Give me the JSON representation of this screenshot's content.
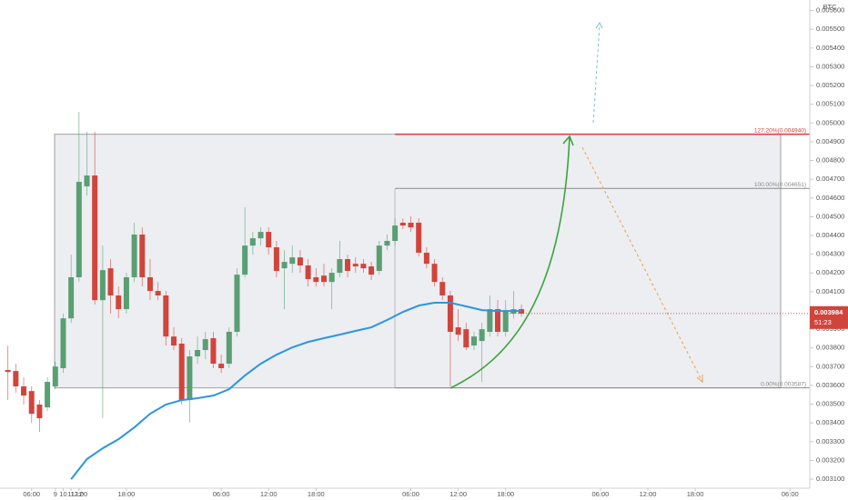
{
  "chart_data": {
    "type": "candlestick",
    "symbol": "BTC",
    "x": [
      3,
      4,
      5,
      6,
      7,
      8,
      9,
      10,
      11,
      12,
      13,
      14,
      15,
      16,
      17,
      18,
      19,
      20,
      21,
      22,
      23,
      24,
      25,
      26,
      27,
      28,
      29,
      30,
      31,
      32,
      33,
      34,
      35,
      36,
      37,
      38,
      39,
      40,
      41,
      42,
      43,
      44,
      45,
      46,
      47,
      48,
      49,
      50,
      51,
      52,
      53,
      54,
      55,
      56,
      57,
      58,
      59,
      60,
      61,
      62,
      63,
      64,
      65,
      66,
      67,
      68
    ],
    "open": [
      0.003682,
      0.003677,
      0.003595,
      0.00357,
      0.003498,
      0.003483,
      0.003595,
      0.003692,
      0.003958,
      0.004177,
      0.004662,
      0.00472,
      0.004055,
      0.004225,
      0.00408,
      0.004007,
      0.004177,
      0.004405,
      0.004177,
      0.004104,
      0.00408,
      0.003861,
      0.003823,
      0.003522,
      0.003755,
      0.003789,
      0.003852,
      0.003716,
      0.003716,
      0.003886,
      0.004191,
      0.004346,
      0.004385,
      0.004419,
      0.004337,
      0.004225,
      0.004249,
      0.004283,
      0.00424,
      0.004177,
      0.004186,
      0.004152,
      0.004201,
      0.004274,
      0.004249,
      0.004249,
      0.004235,
      0.004211,
      0.004346,
      0.004371,
      0.004468,
      0.004468,
      0.004468,
      0.004308,
      0.004249,
      0.004152,
      0.00408,
      0.00391,
      0.0039,
      0.003813,
      0.003837,
      0.003886,
      0.004007,
      0.003886,
      0.003983,
      0.004007
    ],
    "high": [
      0.003813,
      0.003716,
      0.003643,
      0.003595,
      0.003522,
      0.003643,
      0.003726,
      0.003983,
      0.004298,
      0.005059,
      0.004953,
      0.004953,
      0.004346,
      0.004274,
      0.004128,
      0.004201,
      0.004468,
      0.004443,
      0.004274,
      0.004152,
      0.004104,
      0.00391,
      0.003852,
      0.003789,
      0.003861,
      0.003886,
      0.003886,
      0.003764,
      0.00391,
      0.004225,
      0.00455,
      0.004419,
      0.004443,
      0.004443,
      0.004371,
      0.004322,
      0.004346,
      0.004322,
      0.004274,
      0.004225,
      0.004249,
      0.004225,
      0.004371,
      0.004298,
      0.004283,
      0.004274,
      0.004259,
      0.004371,
      0.004405,
      0.004492,
      0.004492,
      0.004502,
      0.004492,
      0.004337,
      0.004274,
      0.004177,
      0.004104,
      0.004007,
      0.003934,
      0.003886,
      0.003934,
      0.00408,
      0.004055,
      0.004055,
      0.004104,
      0.004031
    ],
    "low": [
      0.003522,
      0.003561,
      0.003498,
      0.003401,
      0.003352,
      0.003464,
      0.00358,
      0.003667,
      0.003934,
      0.004152,
      0.004613,
      0.004031,
      0.003425,
      0.003983,
      0.003958,
      0.003983,
      0.004152,
      0.004128,
      0.004055,
      0.004055,
      0.003813,
      0.003789,
      0.003498,
      0.003401,
      0.003716,
      0.00374,
      0.003692,
      0.003667,
      0.003692,
      0.003861,
      0.004177,
      0.004298,
      0.004346,
      0.004298,
      0.004177,
      0.004007,
      0.004201,
      0.004201,
      0.004128,
      0.004128,
      0.004128,
      0.004007,
      0.004177,
      0.004177,
      0.004201,
      0.004201,
      0.004162,
      0.004191,
      0.004322,
      0.004346,
      0.004434,
      0.004419,
      0.004288,
      0.004225,
      0.004128,
      0.004055,
      0.003595,
      0.003837,
      0.003789,
      0.003789,
      0.003619,
      0.003861,
      0.003861,
      0.003861,
      0.003958,
      0.003968
    ],
    "close": [
      0.003672,
      0.003595,
      0.003546,
      0.003449,
      0.003425,
      0.003619,
      0.003701,
      0.003958,
      0.004177,
      0.004686,
      0.00472,
      0.004055,
      0.004215,
      0.00408,
      0.004007,
      0.004177,
      0.004405,
      0.004177,
      0.004104,
      0.00408,
      0.003861,
      0.003813,
      0.003522,
      0.003755,
      0.003789,
      0.003847,
      0.003716,
      0.003692,
      0.003886,
      0.004191,
      0.004346,
      0.004385,
      0.004419,
      0.004337,
      0.004211,
      0.004259,
      0.004283,
      0.00424,
      0.004167,
      0.004152,
      0.004152,
      0.004201,
      0.004274,
      0.004211,
      0.004235,
      0.004225,
      0.004191,
      0.004346,
      0.004371,
      0.004453,
      0.004453,
      0.004443,
      0.004308,
      0.004249,
      0.004152,
      0.00408,
      0.003886,
      0.003871,
      0.003803,
      0.003861,
      0.0039,
      0.004007,
      0.003886,
      0.003997,
      0.004007,
      0.003983
    ],
    "up_color": "#5a9e74",
    "down_color": "#d1443c",
    "overlay": {
      "color": "#2b95e0",
      "x": [
        11,
        13,
        15,
        17,
        19,
        21,
        23,
        25,
        27,
        29,
        31,
        33,
        35,
        37,
        39,
        41,
        43,
        45,
        47,
        49,
        51,
        53,
        55,
        57,
        59,
        61,
        63,
        65,
        67,
        68
      ],
      "values": [
        0.0031,
        0.003207,
        0.003265,
        0.003313,
        0.003376,
        0.003449,
        0.003498,
        0.003522,
        0.003532,
        0.003546,
        0.00358,
        0.003653,
        0.003716,
        0.003764,
        0.003803,
        0.003832,
        0.003852,
        0.003871,
        0.003891,
        0.00391,
        0.003949,
        0.003992,
        0.004026,
        0.004041,
        0.004041,
        0.004022,
        0.004002,
        0.003997,
        0.003997,
        0.003997
      ]
    },
    "levels": [
      {
        "label": "0.00%(0.003587)",
        "value": 0.003587,
        "color": "#8a8a8a"
      },
      {
        "label": "100.00%(0.004651)",
        "value": 0.004651,
        "color": "#8a8a8a"
      },
      {
        "label": "127.20%(0.004940)",
        "value": 0.00494,
        "color": "#e0393e"
      }
    ],
    "last_price": {
      "value": 0.003984,
      "label": "0.003984",
      "countdown": "51:23",
      "color": "#d1443c"
    },
    "xlim": [
      2,
      104.5
    ],
    "ylim": [
      0.003052,
      0.005656
    ],
    "grid": false,
    "xticks": [
      {
        "value": 6,
        "label": "06:00"
      },
      {
        "value": 12,
        "label": "12:00"
      },
      {
        "value": 18,
        "label": "18:00"
      },
      9,
      {
        "value": 30,
        "label": "06:00"
      },
      {
        "value": 36,
        "label": "12:00"
      },
      {
        "value": 42,
        "label": "18:00"
      },
      10,
      {
        "value": 54,
        "label": "06:00"
      },
      {
        "value": 60,
        "label": "12:00"
      },
      {
        "value": 66,
        "label": "18:00"
      },
      11,
      {
        "value": 78,
        "label": "06:00"
      },
      {
        "value": 84,
        "label": "12:00"
      },
      {
        "value": 90,
        "label": "18:00"
      },
      12,
      {
        "value": 102,
        "label": "06:00"
      }
    ],
    "yticks": [
      {
        "value": 0.0031,
        "label": "0.003100"
      },
      {
        "value": 0.0032,
        "label": "0.003200"
      },
      {
        "value": 0.0033,
        "label": "0.003300"
      },
      {
        "value": 0.0034,
        "label": "0.003400"
      },
      {
        "value": 0.0035,
        "label": "0.003500"
      },
      {
        "value": 0.0036,
        "label": "0.003600"
      },
      {
        "value": 0.0037,
        "label": "0.003700"
      },
      {
        "value": 0.0038,
        "label": "0.003800"
      },
      {
        "value": 0.0039,
        "label": "0.003900"
      },
      {
        "value": 0.004,
        "label": "0.004000"
      },
      {
        "value": 0.0041,
        "label": "0.004100"
      },
      {
        "value": 0.0042,
        "label": "0.004200"
      },
      {
        "value": 0.0043,
        "label": "0.004300"
      },
      {
        "value": 0.0044,
        "label": "0.004400"
      },
      {
        "value": 0.0045,
        "label": "0.004500"
      },
      {
        "value": 0.0046,
        "label": "0.004600"
      },
      {
        "value": 0.0047,
        "label": "0.004700"
      },
      {
        "value": 0.0048,
        "label": "0.004800"
      },
      {
        "value": 0.0049,
        "label": "0.004900"
      },
      {
        "value": 0.005,
        "label": "0.005000"
      },
      {
        "value": 0.0051,
        "label": "0.005100"
      },
      {
        "value": 0.0052,
        "label": "0.005200"
      },
      {
        "value": 0.0053,
        "label": "0.005300"
      },
      {
        "value": 0.0054,
        "label": "0.005400"
      },
      {
        "value": 0.0055,
        "label": "0.005500"
      },
      {
        "value": 0.0056,
        "label": "0.005600"
      }
    ]
  }
}
